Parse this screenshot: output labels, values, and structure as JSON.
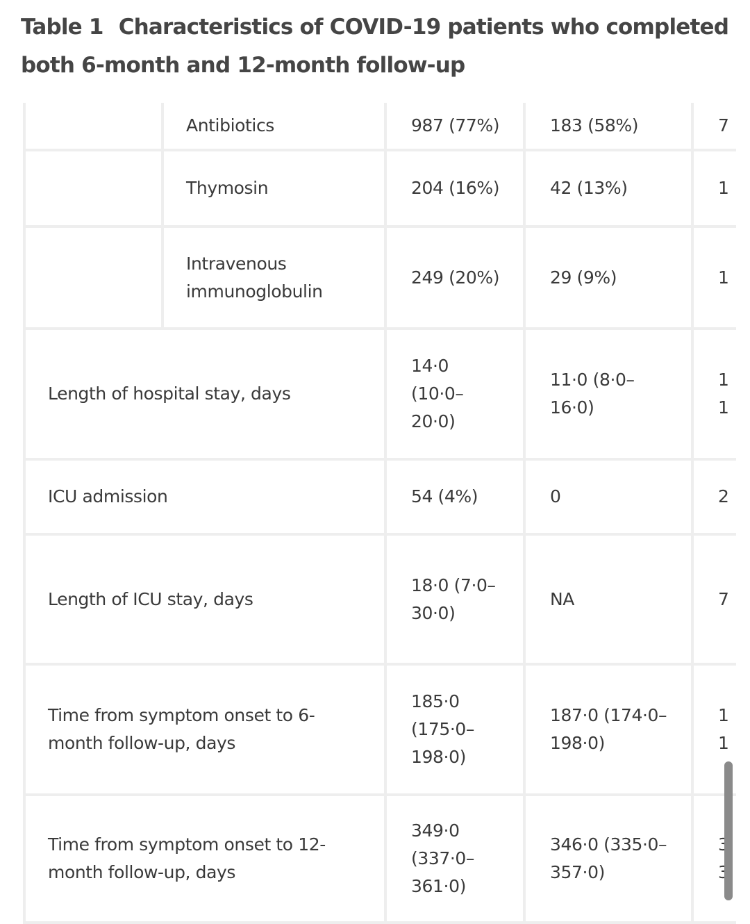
{
  "header": {
    "label": "Table 1",
    "title": "Characteristics of COVID-19 patients who completed both 6-month and 12-month follow-up"
  },
  "table": {
    "rows": [
      {
        "subitem": [
          "Antibiotics"
        ],
        "values": [
          [
            "987 (77%)"
          ],
          [
            "183 (58%)"
          ],
          [
            "7"
          ]
        ]
      },
      {
        "subitem": [
          "Thymosin"
        ],
        "values": [
          [
            "204 (16%)"
          ],
          [
            "42 (13%)"
          ],
          [
            "1"
          ]
        ]
      },
      {
        "subitem": [
          "Intravenous",
          "immunoglobulin"
        ],
        "values": [
          [
            "249 (20%)"
          ],
          [
            "29 (9%)"
          ],
          [
            "1"
          ]
        ]
      },
      {
        "item": [
          "Length of hospital stay, days"
        ],
        "values": [
          [
            "14·0",
            "(10·0–",
            "20·0)"
          ],
          [
            "11·0 (8·0–",
            "16·0)"
          ],
          [
            "1",
            "1"
          ]
        ]
      },
      {
        "item": [
          "ICU admission"
        ],
        "values": [
          [
            "54 (4%)"
          ],
          [
            "0"
          ],
          [
            "2"
          ]
        ]
      },
      {
        "item": [
          "Length of ICU stay, days"
        ],
        "values": [
          [
            "18·0 (7·0–",
            "30·0)"
          ],
          [
            "NA"
          ],
          [
            "7"
          ]
        ]
      },
      {
        "item": [
          "Time from symptom onset to 6-",
          "month follow-up, days"
        ],
        "values": [
          [
            "185·0",
            "(175·0–",
            "198·0)"
          ],
          [
            "187·0 (174·0–",
            "198·0)"
          ],
          [
            "1",
            "1"
          ]
        ]
      },
      {
        "item": [
          "Time from symptom onset to 12-",
          "month follow-up, days"
        ],
        "values": [
          [
            "349·0",
            "(337·0–",
            "361·0)"
          ],
          [
            "346·0 (335·0–",
            "357·0)"
          ],
          [
            "3",
            "3"
          ]
        ]
      }
    ]
  }
}
